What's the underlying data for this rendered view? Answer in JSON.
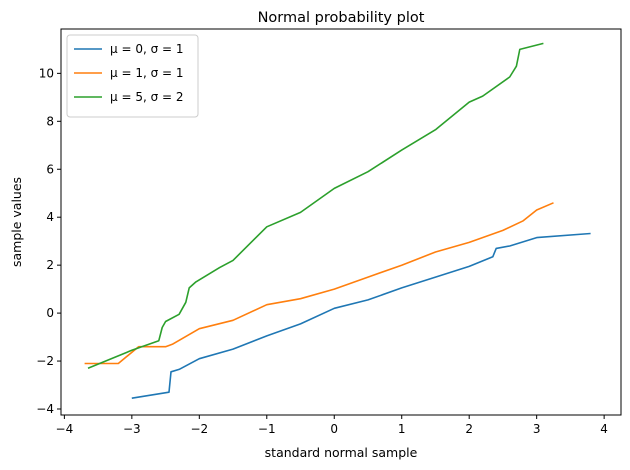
{
  "chart_data": {
    "type": "line",
    "title": "Normal probability plot",
    "xlabel": "standard normal sample",
    "ylabel": "sample values",
    "xlim": [
      -4.05,
      4.25
    ],
    "ylim": [
      -4.25,
      11.85
    ],
    "xticks": [
      -4,
      -3,
      -2,
      -1,
      0,
      1,
      2,
      3,
      4
    ],
    "xtick_labels": [
      "−4",
      "−3",
      "−2",
      "−1",
      "0",
      "1",
      "2",
      "3",
      "4"
    ],
    "yticks": [
      -4,
      -2,
      0,
      2,
      4,
      6,
      8,
      10
    ],
    "ytick_labels": [
      "−4",
      "−2",
      "0",
      "2",
      "4",
      "6",
      "8",
      "10"
    ],
    "grid": false,
    "legend_position": "top-left",
    "series": [
      {
        "name": "μ = 0, σ = 1",
        "color": "#1f77b4",
        "x": [
          -3.0,
          -2.45,
          -2.42,
          -2.3,
          -2.0,
          -1.5,
          -1.0,
          -0.5,
          0.0,
          0.5,
          1.0,
          1.5,
          2.0,
          2.35,
          2.4,
          2.6,
          3.0,
          3.8
        ],
        "y": [
          -3.55,
          -3.3,
          -2.45,
          -2.35,
          -1.9,
          -1.5,
          -0.95,
          -0.45,
          0.2,
          0.55,
          1.05,
          1.5,
          1.95,
          2.35,
          2.7,
          2.8,
          3.15,
          3.32
        ]
      },
      {
        "name": "μ = 1, σ = 1",
        "color": "#ff7f0e",
        "x": [
          -3.7,
          -3.2,
          -2.9,
          -2.5,
          -2.4,
          -2.0,
          -1.5,
          -1.0,
          -0.5,
          0.0,
          0.5,
          1.0,
          1.5,
          2.0,
          2.5,
          2.8,
          3.0,
          3.25
        ],
        "y": [
          -2.1,
          -2.1,
          -1.4,
          -1.4,
          -1.3,
          -0.65,
          -0.3,
          0.35,
          0.6,
          1.0,
          1.5,
          2.0,
          2.55,
          2.95,
          3.45,
          3.85,
          4.3,
          4.6
        ]
      },
      {
        "name": "μ = 5, σ = 2",
        "color": "#2ca02c",
        "x": [
          -3.65,
          -3.0,
          -2.6,
          -2.55,
          -2.5,
          -2.3,
          -2.2,
          -2.15,
          -2.05,
          -1.7,
          -1.5,
          -1.0,
          -0.5,
          0.0,
          0.5,
          1.0,
          1.5,
          2.0,
          2.2,
          2.6,
          2.7,
          2.75,
          3.1
        ],
        "y": [
          -2.3,
          -1.55,
          -1.15,
          -0.6,
          -0.35,
          -0.05,
          0.45,
          1.05,
          1.3,
          1.9,
          2.2,
          3.6,
          4.2,
          5.2,
          5.9,
          6.8,
          7.65,
          8.8,
          9.05,
          9.85,
          10.3,
          11.0,
          11.25
        ]
      }
    ]
  }
}
